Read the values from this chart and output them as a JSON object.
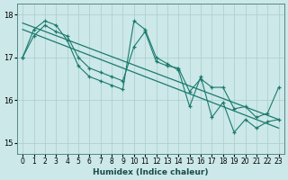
{
  "xlabel": "Humidex (Indice chaleur)",
  "background_color": "#cce8e8",
  "grid_color": "#aacccc",
  "line_color": "#1a7a6e",
  "xlim": [
    -0.5,
    23.5
  ],
  "ylim": [
    14.75,
    18.25
  ],
  "yticks": [
    15,
    16,
    17,
    18
  ],
  "xticks": [
    0,
    1,
    2,
    3,
    4,
    5,
    6,
    7,
    8,
    9,
    10,
    11,
    12,
    13,
    14,
    15,
    16,
    17,
    18,
    19,
    20,
    21,
    22,
    23
  ],
  "x": [
    0,
    1,
    2,
    3,
    4,
    5,
    6,
    7,
    8,
    9,
    10,
    11,
    12,
    13,
    14,
    15,
    16,
    17,
    18,
    19,
    20,
    21,
    22,
    23
  ],
  "line1": [
    17.0,
    17.5,
    17.75,
    17.6,
    17.5,
    17.0,
    16.75,
    16.65,
    16.55,
    16.45,
    17.25,
    17.6,
    16.9,
    16.8,
    16.75,
    16.2,
    16.5,
    16.3,
    16.3,
    15.8,
    15.85,
    15.6,
    15.7,
    16.3
  ],
  "line2": [
    17.0,
    17.65,
    17.85,
    17.75,
    17.4,
    16.8,
    16.55,
    16.45,
    16.35,
    16.25,
    17.85,
    17.65,
    17.0,
    16.85,
    16.7,
    15.85,
    16.55,
    15.6,
    15.95,
    15.25,
    15.55,
    15.35,
    15.5,
    15.55
  ],
  "trend_top_y0": 17.8,
  "trend_top_y1": 15.55,
  "trend_bot_y0": 17.65,
  "trend_bot_y1": 15.35
}
